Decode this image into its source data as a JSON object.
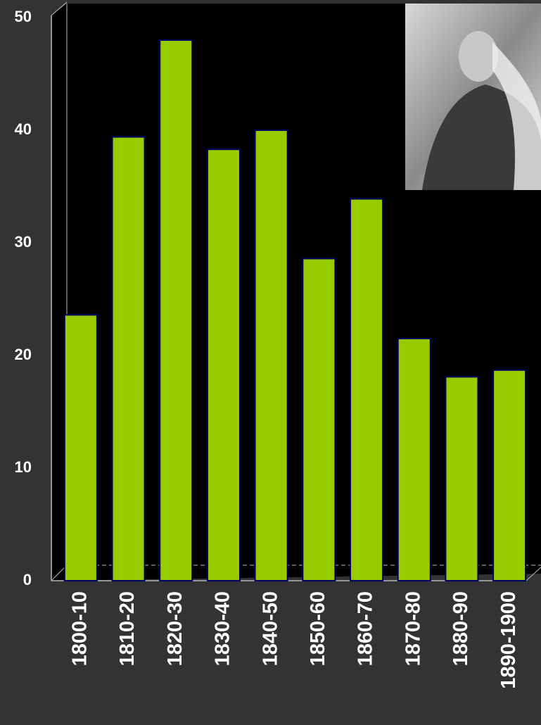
{
  "chart_data": {
    "type": "bar",
    "categories": [
      "1800-10",
      "1810-20",
      "1820-30",
      "1830-40",
      "1840-50",
      "1850-60",
      "1860-70",
      "1870-80",
      "1880-90",
      "1890-1900"
    ],
    "values": [
      23.6,
      39.4,
      48,
      38.3,
      40,
      28.6,
      33.9,
      21.5,
      18.1,
      18.7
    ],
    "color": "#99cc00",
    "ylim": [
      0,
      50
    ],
    "yticks": [
      0,
      10,
      20,
      30,
      40,
      50
    ],
    "grid": false
  }
}
